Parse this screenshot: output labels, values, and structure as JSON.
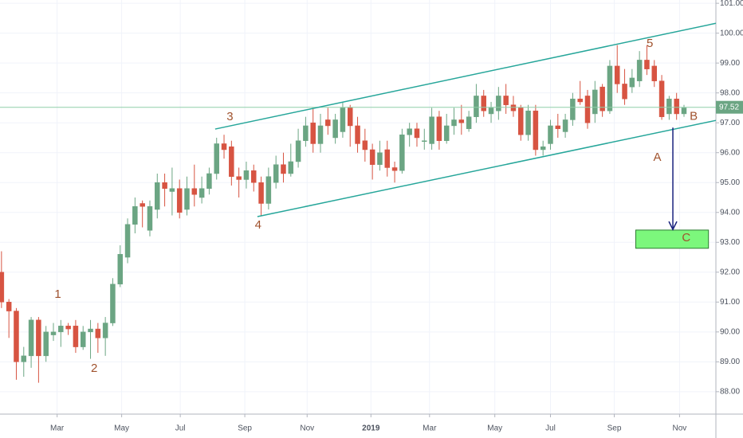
{
  "chart_data": {
    "type": "candlestick",
    "up_color": "#6ba583",
    "down_color": "#d75442",
    "open": [
      92.0,
      91.0,
      90.7,
      89.0,
      89.2,
      90.4,
      89.2,
      89.9,
      90.0,
      90.2,
      90.2,
      89.5,
      90.0,
      90.1,
      89.8,
      90.3,
      91.6,
      92.5,
      93.6,
      94.3,
      93.4,
      94.1,
      95.0,
      94.7,
      94.8,
      94.1,
      94.8,
      94.5,
      94.8,
      95.3,
      96.3,
      96.2,
      95.2,
      95.1,
      95.4,
      95.0,
      94.3,
      95.0,
      95.6,
      95.3,
      95.7,
      96.4,
      97.0,
      96.3,
      97.1,
      96.5,
      96.7,
      97.5,
      96.9,
      96.4,
      96.1,
      95.6,
      96.1,
      95.5,
      95.4,
      96.6,
      96.8,
      96.4,
      96.3,
      97.2,
      96.4,
      96.9,
      97.1,
      96.8,
      97.2,
      97.9,
      97.3,
      97.4,
      97.9,
      97.6,
      97.5,
      96.6,
      97.4,
      96.1,
      96.3,
      96.9,
      96.7,
      97.1,
      97.8,
      97.9,
      97.3,
      98.2,
      97.4,
      98.9,
      98.3,
      98.2,
      98.4,
      99.1,
      98.9,
      98.4,
      97.3,
      97.8,
      97.3
    ],
    "high": [
      92.7,
      91.1,
      90.8,
      89.5,
      90.5,
      90.5,
      90.2,
      90.3,
      90.4,
      90.3,
      90.4,
      90.2,
      90.4,
      90.3,
      90.5,
      91.8,
      92.9,
      93.8,
      94.5,
      94.4,
      94.4,
      95.3,
      95.3,
      95.5,
      95.1,
      95.2,
      95.6,
      95.2,
      95.5,
      96.5,
      96.6,
      96.4,
      95.5,
      95.7,
      95.6,
      95.2,
      95.5,
      95.9,
      96.0,
      96.3,
      96.8,
      97.2,
      97.5,
      97.3,
      97.5,
      97.3,
      97.7,
      97.6,
      97.2,
      96.8,
      96.3,
      96.4,
      96.4,
      95.7,
      96.8,
      97.0,
      97.0,
      96.8,
      97.5,
      97.4,
      97.3,
      97.5,
      97.6,
      97.4,
      98.3,
      98.1,
      97.7,
      98.2,
      98.3,
      97.9,
      97.6,
      97.6,
      97.6,
      96.4,
      97.1,
      97.3,
      97.3,
      98.0,
      98.4,
      98.1,
      98.4,
      98.3,
      99.1,
      99.6,
      98.8,
      98.8,
      99.4,
      99.6,
      99.1,
      98.6,
      97.9,
      98.0,
      97.6
    ],
    "low": [
      90.8,
      89.8,
      88.4,
      88.5,
      88.8,
      88.3,
      89.0,
      89.7,
      89.5,
      89.9,
      89.3,
      89.4,
      89.1,
      89.3,
      89.2,
      90.2,
      91.5,
      92.3,
      93.3,
      93.5,
      93.2,
      93.8,
      94.2,
      93.9,
      93.8,
      93.9,
      94.2,
      94.3,
      94.6,
      95.1,
      95.8,
      94.9,
      94.5,
      94.8,
      94.7,
      93.9,
      94.1,
      94.8,
      95.0,
      95.2,
      95.5,
      96.2,
      96.0,
      96.0,
      96.6,
      96.3,
      96.5,
      96.2,
      96.0,
      95.7,
      95.1,
      95.4,
      95.2,
      95.0,
      95.3,
      96.2,
      96.2,
      96.1,
      96.1,
      96.1,
      96.3,
      96.6,
      96.6,
      96.7,
      97.0,
      97.2,
      97.0,
      97.1,
      97.3,
      97.2,
      96.4,
      96.4,
      95.9,
      95.9,
      96.1,
      96.5,
      96.5,
      96.9,
      97.6,
      96.8,
      97.0,
      97.2,
      97.3,
      98.0,
      97.6,
      98.0,
      98.2,
      98.6,
      98.2,
      97.1,
      97.1,
      97.1,
      97.2
    ],
    "close": [
      91.0,
      90.7,
      89.0,
      89.2,
      90.4,
      89.2,
      90.0,
      90.0,
      90.2,
      90.1,
      89.5,
      90.0,
      90.1,
      89.8,
      90.3,
      91.6,
      92.6,
      93.6,
      94.2,
      94.2,
      94.2,
      95.0,
      94.8,
      94.8,
      94.0,
      94.8,
      94.6,
      94.8,
      95.3,
      96.3,
      96.1,
      95.2,
      95.1,
      95.4,
      95.0,
      94.3,
      95.2,
      95.6,
      95.3,
      95.7,
      96.4,
      96.9,
      96.3,
      96.9,
      96.9,
      97.1,
      97.5,
      96.9,
      96.3,
      96.1,
      95.6,
      96.0,
      95.5,
      95.4,
      96.6,
      96.8,
      96.5,
      96.4,
      97.2,
      96.4,
      96.9,
      97.1,
      97.0,
      97.2,
      97.9,
      97.4,
      97.5,
      97.9,
      97.6,
      97.4,
      96.6,
      97.4,
      96.1,
      96.2,
      96.9,
      96.8,
      97.1,
      97.8,
      97.7,
      97.0,
      98.1,
      97.4,
      98.9,
      98.3,
      97.8,
      98.5,
      99.1,
      98.8,
      98.4,
      97.2,
      97.8,
      97.3,
      97.5
    ],
    "xlim": [
      -0.2,
      96.3
    ],
    "ylim": [
      87.25,
      101.11
    ],
    "xticks": [
      {
        "value": 7.5,
        "label": "Mar"
      },
      {
        "value": 16.2,
        "label": "May"
      },
      {
        "value": 24.1,
        "label": "Jul"
      },
      {
        "value": 32.8,
        "label": "Sep"
      },
      {
        "value": 41.2,
        "label": "Nov"
      },
      {
        "value": 49.8,
        "label": "2019"
      },
      {
        "value": 57.7,
        "label": "Mar"
      },
      {
        "value": 66.5,
        "label": "May"
      },
      {
        "value": 74.0,
        "label": "Jul"
      },
      {
        "value": 82.6,
        "label": "Sep"
      },
      {
        "value": 91.4,
        "label": "Nov"
      }
    ],
    "yticks": [
      {
        "value": 88,
        "label": "88.00"
      },
      {
        "value": 89,
        "label": "89.00"
      },
      {
        "value": 90,
        "label": "90.00"
      },
      {
        "value": 91,
        "label": "91.00"
      },
      {
        "value": 92,
        "label": "92.00"
      },
      {
        "value": 93,
        "label": "93.00"
      },
      {
        "value": 94,
        "label": "94.00"
      },
      {
        "value": 95,
        "label": "95.00"
      },
      {
        "value": 96,
        "label": "96.00"
      },
      {
        "value": 97,
        "label": "97.00"
      },
      {
        "value": 98,
        "label": "98.00"
      },
      {
        "value": 99,
        "label": "99.00"
      },
      {
        "value": 100,
        "label": "100.00"
      },
      {
        "value": 101,
        "label": "101.00"
      }
    ],
    "grid": true,
    "last_price": 97.52,
    "channel": [
      {
        "x0": 28.8,
        "y0": 96.79,
        "x1": 96.3,
        "y1": 100.33
      },
      {
        "x0": 34.5,
        "y0": 93.86,
        "x1": 96.3,
        "y1": 97.08
      }
    ],
    "waves": [
      {
        "text": "1",
        "x": 7.6,
        "y": 91.25
      },
      {
        "text": "2",
        "x": 12.5,
        "y": 88.77
      },
      {
        "text": "3",
        "x": 30.8,
        "y": 97.19
      },
      {
        "text": "4",
        "x": 34.6,
        "y": 93.57
      },
      {
        "text": "5",
        "x": 87.4,
        "y": 99.64
      },
      {
        "text": "A",
        "x": 88.4,
        "y": 95.83
      },
      {
        "text": "B",
        "x": 93.3,
        "y": 97.21
      },
      {
        "text": "C",
        "x": 92.3,
        "y": 93.14
      }
    ],
    "target": {
      "x0": 85.5,
      "x1": 95.3,
      "y0": 93.41,
      "y1": 92.8
    },
    "arrow": {
      "x": 90.5,
      "y0": 96.84,
      "y1": 93.43
    }
  }
}
